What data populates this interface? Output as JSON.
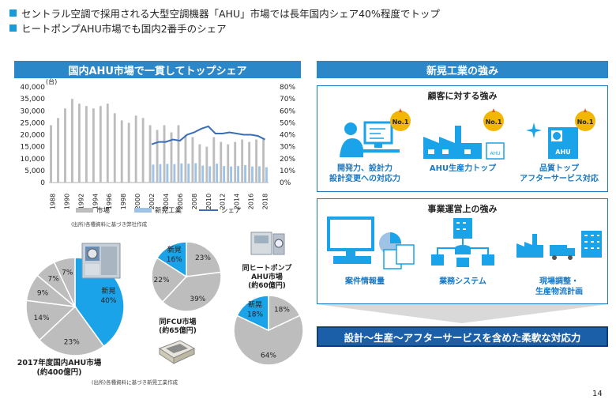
{
  "bullets": [
    "セントラル空調で採用される大型空調機器「AHU」市場では長年国内シェア40%程度でトップ",
    "ヒートポンプAHU市場でも国内2番手のシェア"
  ],
  "left_header": "国内AHU市場で一貫してトップシェア",
  "right_header": "新晃工業の強み",
  "chart_data": [
    {
      "type": "bar",
      "unit_label": "(台)",
      "categories": [
        "1988",
        "1989",
        "1990",
        "1991",
        "1992",
        "1993",
        "1994",
        "1995",
        "1996",
        "1997",
        "1998",
        "1999",
        "2000",
        "2001",
        "2002",
        "2003",
        "2004",
        "2005",
        "2006",
        "2007",
        "2008",
        "2009",
        "2010",
        "2011",
        "2012",
        "2013",
        "2014",
        "2015",
        "2016",
        "2017",
        "2018"
      ],
      "x_tick_labels": [
        "1988",
        "1990",
        "1992",
        "1994",
        "1996",
        "1998",
        "2000",
        "2002",
        "2004",
        "2006",
        "2008",
        "2010",
        "2012",
        "2014",
        "2016",
        "2018"
      ],
      "series": [
        {
          "name": "市場",
          "type": "bar",
          "color": "#bdbdbd",
          "values": [
            24000,
            27000,
            31000,
            35000,
            33000,
            32000,
            31000,
            32000,
            33000,
            29000,
            26000,
            25000,
            28000,
            27000,
            24000,
            22000,
            24000,
            21000,
            24000,
            20000,
            19000,
            16000,
            15000,
            19000,
            17000,
            16000,
            17000,
            18000,
            17000,
            18000,
            18000
          ]
        },
        {
          "name": "新晃工業",
          "type": "bar",
          "color": "#9ec3e6",
          "values": [
            null,
            null,
            null,
            null,
            null,
            null,
            null,
            null,
            null,
            null,
            null,
            null,
            null,
            null,
            7500,
            7700,
            7800,
            7700,
            8000,
            7900,
            8100,
            7100,
            6800,
            7900,
            6900,
            6700,
            6900,
            7300,
            6700,
            6800,
            6400
          ]
        },
        {
          "name": "シェア",
          "type": "line",
          "color": "#3a6db5",
          "axis": "right",
          "values": [
            null,
            null,
            null,
            null,
            null,
            null,
            null,
            null,
            null,
            null,
            null,
            null,
            null,
            null,
            0.32,
            0.34,
            0.34,
            0.36,
            0.35,
            0.4,
            0.42,
            0.45,
            0.47,
            0.41,
            0.41,
            0.42,
            0.41,
            0.4,
            0.4,
            0.39,
            0.36
          ]
        }
      ],
      "ylim": [
        0,
        40000
      ],
      "y_ticks": [
        "0",
        "5,000",
        "10,000",
        "15,000",
        "20,000",
        "25,000",
        "30,000",
        "35,000",
        "40,000"
      ],
      "y2lim": [
        0,
        0.8
      ],
      "y2_ticks": [
        "0%",
        "10%",
        "20%",
        "30%",
        "40%",
        "50%",
        "60%",
        "70%",
        "80%"
      ],
      "legend": [
        "市場",
        "新晃工業",
        "シェア"
      ],
      "source": "(出所)各種資料に基づき弊社作成"
    },
    {
      "type": "pie",
      "title": "2017年度国内AHU市場",
      "subtitle": "(約400億円)",
      "slices": [
        {
          "label": "新晃",
          "value": 40,
          "text": "40%",
          "color": "#1aa3e8"
        },
        {
          "label": "",
          "value": 23,
          "text": "23%",
          "color": "#bdbdbd"
        },
        {
          "label": "",
          "value": 14,
          "text": "14%",
          "color": "#bdbdbd"
        },
        {
          "label": "",
          "value": 9,
          "text": "9%",
          "color": "#bdbdbd"
        },
        {
          "label": "",
          "value": 7,
          "text": "7%",
          "color": "#bdbdbd"
        },
        {
          "label": "",
          "value": 7,
          "text": "7%",
          "color": "#bdbdbd"
        }
      ]
    },
    {
      "type": "pie",
      "title": "同FCU市場",
      "subtitle": "(約65億円)",
      "slices": [
        {
          "label": "",
          "value": 23,
          "text": "23%",
          "color": "#bdbdbd"
        },
        {
          "label": "",
          "value": 39,
          "text": "39%",
          "color": "#bdbdbd"
        },
        {
          "label": "",
          "value": 22,
          "text": "22%",
          "color": "#bdbdbd"
        },
        {
          "label": "新晃",
          "value": 16,
          "text": "16%",
          "color": "#1aa3e8"
        }
      ]
    },
    {
      "type": "pie",
      "title": "同ヒートポンプ",
      "title2": "AHU市場",
      "subtitle": "(約60億円)",
      "slices": [
        {
          "label": "",
          "value": 18,
          "text": "18%",
          "color": "#bdbdbd"
        },
        {
          "label": "",
          "value": 64,
          "text": "64%",
          "color": "#bdbdbd"
        },
        {
          "label": "新晃",
          "value": 18,
          "text": "18%",
          "color": "#1aa3e8"
        }
      ]
    }
  ],
  "pie_source": "(出所)各種資料に基づき新晃工業作成",
  "customer_panel": {
    "title": "顧客に対する強み",
    "badge": "No.1",
    "items": [
      {
        "line1": "開発力、設計力",
        "line2": "設計変更への対応力"
      },
      {
        "line1": "AHU生産力トップ",
        "line2": ""
      },
      {
        "line1": "品質トップ",
        "line2": "アフターサービス対応"
      }
    ],
    "ahu_text": "AHU"
  },
  "business_panel": {
    "title": "事業運営上の強み",
    "items": [
      {
        "line1": "案件情報量",
        "line2": ""
      },
      {
        "line1": "業務システム",
        "line2": ""
      },
      {
        "line1": "現場調整・",
        "line2": "生産物流計画"
      }
    ]
  },
  "bottom_banner": "設計～生産～アフターサービスを含めた柔軟な対応力",
  "page_number": "14",
  "colors": {
    "accent": "#1a9bd7",
    "header": "#2c87c9",
    "banner": "#1a5fa8",
    "panel_border": "#1a78c2",
    "label_blue": "#1a78c2"
  }
}
